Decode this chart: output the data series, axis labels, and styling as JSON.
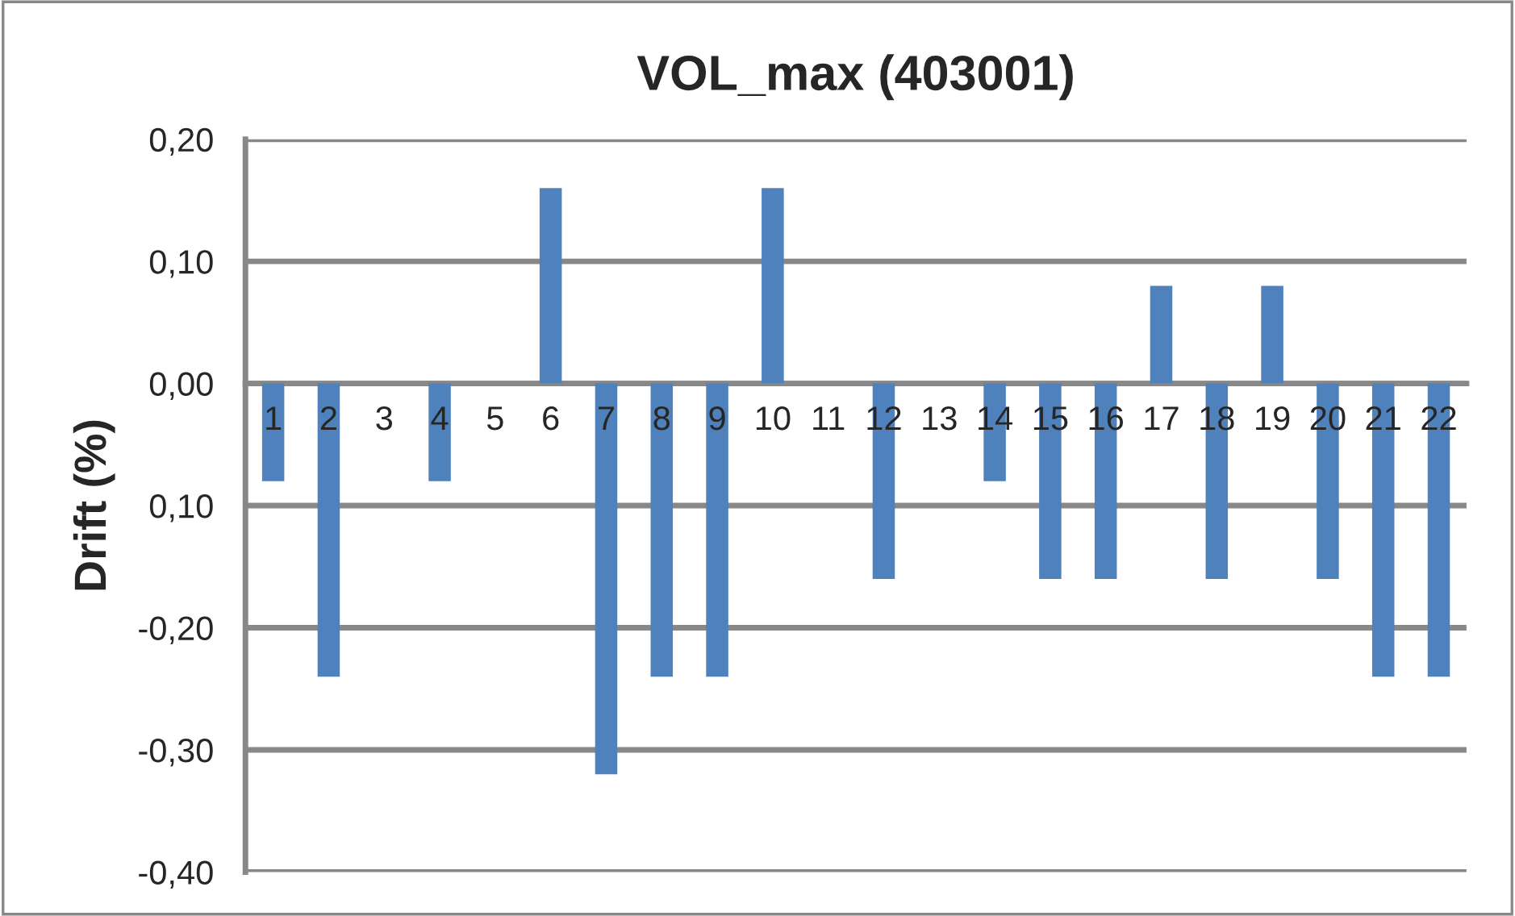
{
  "chart_data": {
    "type": "bar",
    "title": "VOL_max (403001)",
    "ylabel": "Drift (%)",
    "categories": [
      "1",
      "2",
      "3",
      "4",
      "5",
      "6",
      "7",
      "8",
      "9",
      "10",
      "11",
      "12",
      "13",
      "14",
      "15",
      "16",
      "17",
      "18",
      "19",
      "20",
      "21",
      "22"
    ],
    "values": [
      -0.08,
      -0.24,
      0,
      -0.08,
      0,
      0.16,
      -0.32,
      -0.24,
      -0.24,
      0.16,
      0,
      -0.16,
      0,
      -0.08,
      -0.16,
      -0.16,
      0.08,
      -0.16,
      0.08,
      -0.16,
      -0.24,
      -0.24
    ],
    "color": "#4f81bd",
    "ylim": [
      -0.4,
      0.2
    ],
    "yticks": [
      {
        "value": 0.2,
        "label": "0,20"
      },
      {
        "value": 0.1,
        "label": "0,10"
      },
      {
        "value": 0,
        "label": "0,00"
      },
      {
        "value": -0.1,
        "label": "0,10"
      },
      {
        "value": -0.2,
        "label": "-0,20"
      },
      {
        "value": -0.3,
        "label": "-0,30"
      },
      {
        "value": -0.4,
        "label": "-0,40"
      }
    ],
    "grid": "y",
    "legend": false
  }
}
